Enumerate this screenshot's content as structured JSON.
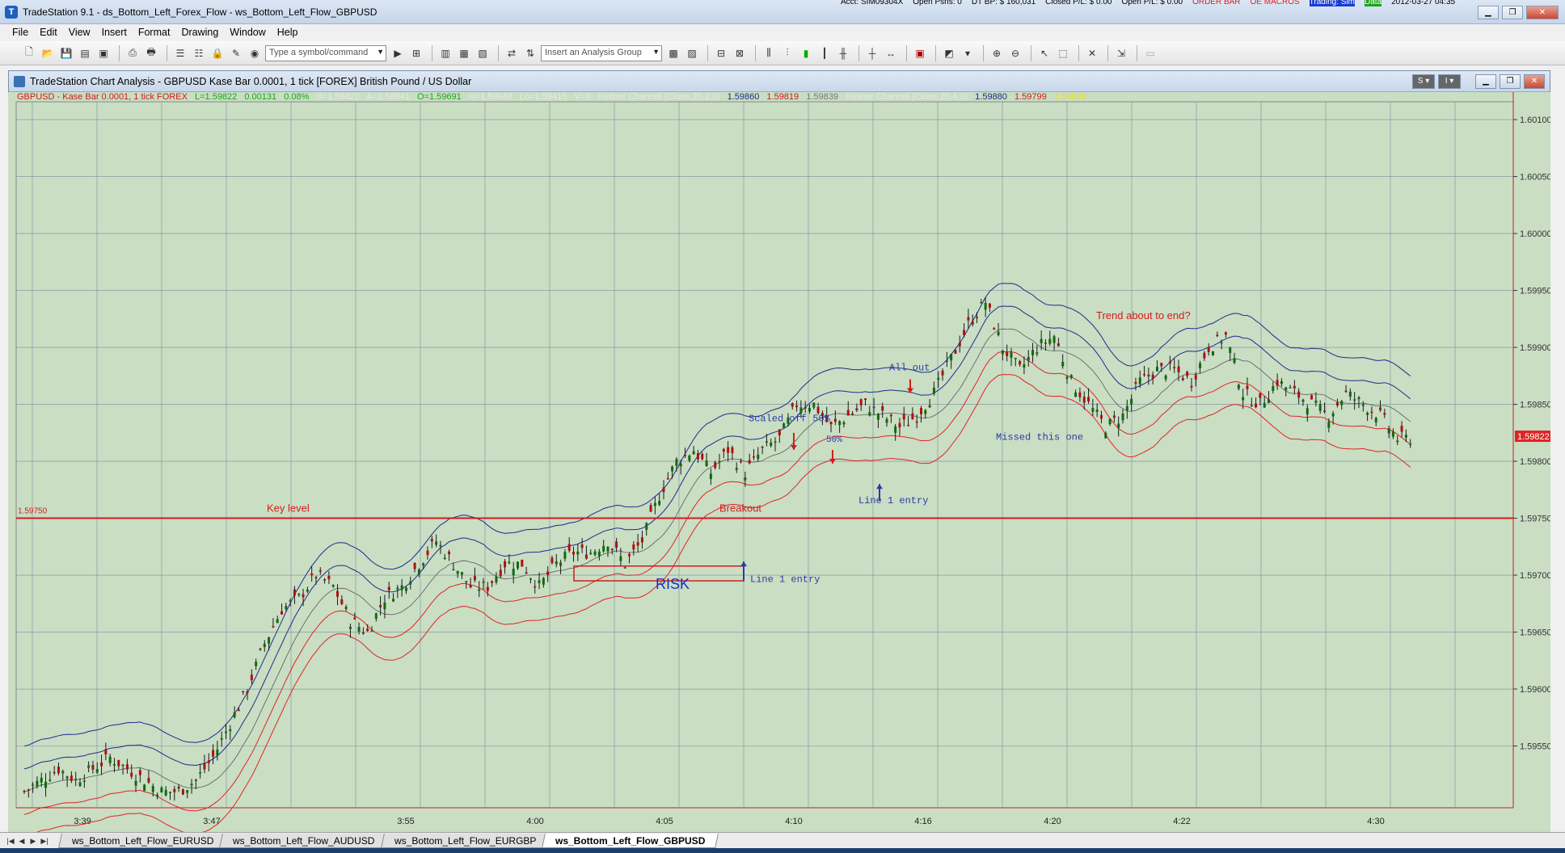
{
  "window": {
    "title": "TradeStation 9.1 - ds_Bottom_Left_Forex_Flow - ws_Bottom_Left_Flow_GBPUSD",
    "status_items": [
      "Acct: SIM09304X",
      "Open Psns: 0",
      "DT BP: $ 160,031",
      "Closed P/L: $ 0.00",
      "Open P/L: $ 0.00",
      "ORDER BAR",
      "OE MACROS",
      "Trading: Sim",
      "Data",
      "2012-03-27 04:35"
    ]
  },
  "menu": [
    "File",
    "Edit",
    "View",
    "Insert",
    "Format",
    "Drawing",
    "Window",
    "Help"
  ],
  "toolbar": {
    "symbol_placeholder": "Type a symbol/command",
    "analysis_placeholder": "Insert an Analysis Group"
  },
  "chart_window": {
    "title": "TradeStation Chart Analysis - GBPUSD Kase Bar 0.0001, 1 tick [FOREX] British Pound / US Dollar",
    "button_s": "S",
    "button_i": "I"
  },
  "legend": {
    "symbol": "GBPUSD - Kase Bar 0.0001, 1 tick  FOREX",
    "last": "L=1.59822",
    "change": "0.00131",
    "pct": "0.08%",
    "bid": "B=1.59822",
    "ask": "A=1.59841",
    "open": "O=1.59691",
    "high": "H=1.59948",
    "low": "Lo=1.59415",
    "vol": "V=0",
    "kc1_name": "Keltner Channel (Close,20,2,0)",
    "kc1_upper": "1.59860",
    "kc1_lower": "1.59819",
    "kc1_mid": "1.59839",
    "kc2_name": "Keltner Channel (Close,20,4,0)",
    "kc2_upper": "1.59880",
    "kc2_lower": "1.59799",
    "kc2_extra": "1.59839"
  },
  "chart_data": {
    "type": "candlestick",
    "ylim": [
      1.595,
      1.6011
    ],
    "y_ticks": [
      "1.60100",
      "1.60050",
      "1.60000",
      "1.59950",
      "1.59900",
      "1.59850",
      "1.59800",
      "1.59750",
      "1.59700",
      "1.59650",
      "1.59600",
      "1.59550"
    ],
    "x_ticks": [
      "3:39",
      "3:47",
      "3:55",
      "4:00",
      "4:05",
      "4:10",
      "4:16",
      "4:20",
      "4:22",
      "4:30"
    ],
    "last_price": "1.59822",
    "key_level_value": 1.5975,
    "key_level_price_label": "1.59750",
    "key_level_label": "Key level",
    "close_series": [
      1.5951,
      1.5952,
      1.5953,
      1.5952,
      1.5953,
      1.5954,
      1.5953,
      1.5952,
      1.5951,
      1.5951,
      1.5952,
      1.5954,
      1.5957,
      1.596,
      1.5964,
      1.5967,
      1.5968,
      1.597,
      1.5969,
      1.5966,
      1.5965,
      1.5968,
      1.5969,
      1.5971,
      1.5973,
      1.5971,
      1.5969,
      1.5969,
      1.5971,
      1.5971,
      1.5969,
      1.5971,
      1.5972,
      1.5972,
      1.5973,
      1.5971,
      1.5973,
      1.5977,
      1.598,
      1.5981,
      1.5979,
      1.5981,
      1.5979,
      1.5981,
      1.5982,
      1.5985,
      1.5985,
      1.5983,
      1.5984,
      1.5985,
      1.5984,
      1.5983,
      1.5984,
      1.5986,
      1.5989,
      1.5992,
      1.5994,
      1.599,
      1.5988,
      1.599,
      1.5991,
      1.5987,
      1.5985,
      1.5983,
      1.5984,
      1.5987,
      1.5988,
      1.5988,
      1.5987,
      1.599,
      1.5991,
      1.5986,
      1.5985,
      1.5987,
      1.5986,
      1.5985,
      1.5984,
      1.5986,
      1.5985,
      1.5984,
      1.5982,
      1.5982
    ],
    "annotations": {
      "breakout": "Breakout",
      "risk": "RISK",
      "line1_entry_a": "Line 1 entry",
      "scaled_off": "Scaled off 50%",
      "fifty": "50%",
      "line1_entry_b": "Line 1 entry",
      "all_out": "All out",
      "missed": "Missed this one",
      "trend_end": "Trend about to end?"
    }
  },
  "tabs": [
    "ws_Bottom_Left_Flow_EURUSD",
    "ws_Bottom_Left_Flow_AUDUSD",
    "ws_Bottom_Left_Flow_EURGBP",
    "ws_Bottom_Left_Flow_GBPUSD"
  ],
  "colors": {
    "chart_bg": "#c9dec3",
    "grid": "#7f8ba0",
    "candle_up": "#0f6b0f",
    "candle_down": "#b01010",
    "channel_upper": "#1c2c8c",
    "channel_lower": "#e02424",
    "channel_mid": "#5a5a5a",
    "annotation_blue": "#2b3aa8",
    "annotation_red": "#d41c1c"
  }
}
